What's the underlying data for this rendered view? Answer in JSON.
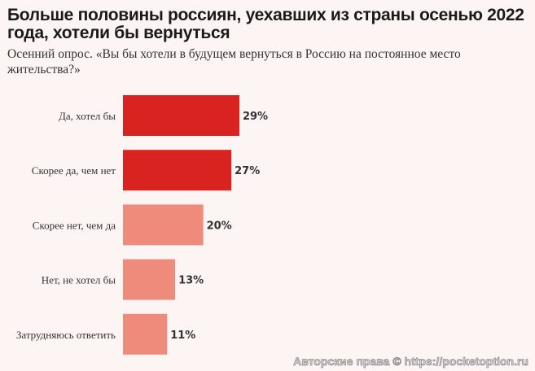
{
  "title": "Больше половины россиян, уехавших из страны осенью 2022 года, хотели бы вернуться",
  "subtitle": "Осенний опрос. «Вы бы хотели в будущем вернуться в Россию на постоянное место жительства?»",
  "watermark": "Авторские права © https://pocketoption.ru",
  "chart_data": {
    "type": "bar",
    "orientation": "horizontal",
    "categories": [
      "Да, хотел бы",
      "Скорее да, чем нет",
      "Скорее нет, чем да",
      "Нет, не хотел бы",
      "Затрудняюсь ответить"
    ],
    "values": [
      29,
      27,
      20,
      13,
      11
    ],
    "labels": [
      "29%",
      "27%",
      "20%",
      "13%",
      "11%"
    ],
    "colors": [
      "#d92320",
      "#d92320",
      "#ee8b7a",
      "#ee8b7a",
      "#ee8b7a"
    ],
    "xlim": [
      0,
      100
    ],
    "grid": false
  }
}
